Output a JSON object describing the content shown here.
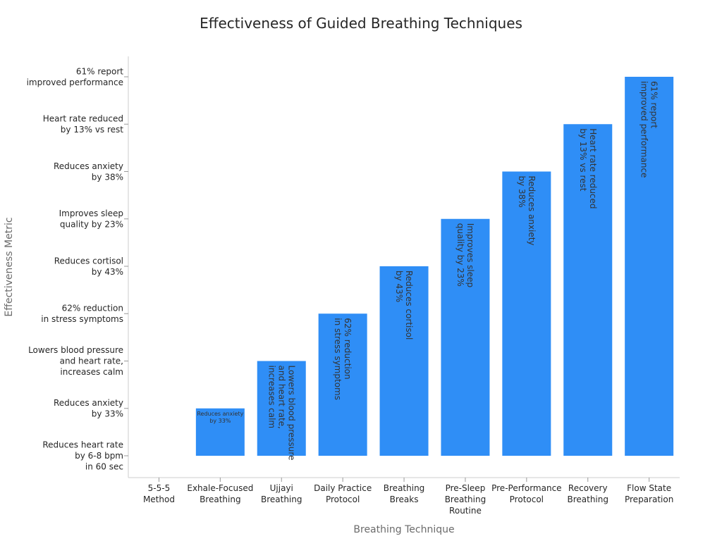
{
  "chart_data": {
    "type": "bar",
    "title": "Effectiveness of Guided Breathing Techniques",
    "xlabel": "Breathing Technique",
    "ylabel": "Effectiveness Metric",
    "categories": [
      "5-5-5 Method",
      "Exhale-Focused Breathing",
      "Ujjayi Breathing",
      "Daily Practice Protocol",
      "Breathing Breaks",
      "Pre-Sleep Breathing Routine",
      "Pre-Performance Protocol",
      "Recovery Breathing",
      "Flow State Preparation"
    ],
    "category_lines": [
      [
        "5-5-5",
        "Method"
      ],
      [
        "Exhale-Focused",
        "Breathing"
      ],
      [
        "Ujjayi",
        "Breathing"
      ],
      [
        "Daily Practice",
        "Protocol"
      ],
      [
        "Breathing",
        "Breaks"
      ],
      [
        "Pre-Sleep",
        "Breathing",
        "Routine"
      ],
      [
        "Pre-Performance",
        "Protocol"
      ],
      [
        "Recovery",
        "Breathing"
      ],
      [
        "Flow State",
        "Preparation"
      ]
    ],
    "y_categories": [
      "Reduces heart rate by 6-8 bpm in 60 sec",
      "Reduces anxiety by 33%",
      "Lowers blood pressure and heart rate, increases calm",
      "62% reduction in stress symptoms",
      "Reduces cortisol by 43%",
      "Improves sleep quality by 23%",
      "Reduces anxiety by 38%",
      "Heart rate reduced by 13% vs rest",
      "61% report improved performance"
    ],
    "y_category_lines": [
      [
        "Reduces heart rate",
        "by 6-8 bpm",
        "in 60 sec"
      ],
      [
        "Reduces anxiety",
        "by 33%"
      ],
      [
        "Lowers blood pressure",
        "and heart rate,",
        "increases calm"
      ],
      [
        "62% reduction",
        "in stress symptoms"
      ],
      [
        "Reduces cortisol",
        "by 43%"
      ],
      [
        "Improves sleep",
        "quality by 23%"
      ],
      [
        "Reduces anxiety",
        "by 38%"
      ],
      [
        "Heart rate reduced",
        "by 13% vs rest"
      ],
      [
        "61% report",
        "improved performance"
      ]
    ],
    "values": [
      "Reduces heart rate by 6-8 bpm in 60 sec",
      "Reduces anxiety by 33%",
      "Lowers blood pressure and heart rate, increases calm",
      "62% reduction in stress symptoms",
      "Reduces cortisol by 43%",
      "Improves sleep quality by 23%",
      "Reduces anxiety by 38%",
      "Heart rate reduced by 13% vs rest",
      "61% report improved performance"
    ],
    "grid": false,
    "legend": "none",
    "bar_color": "#2f8ef6"
  }
}
